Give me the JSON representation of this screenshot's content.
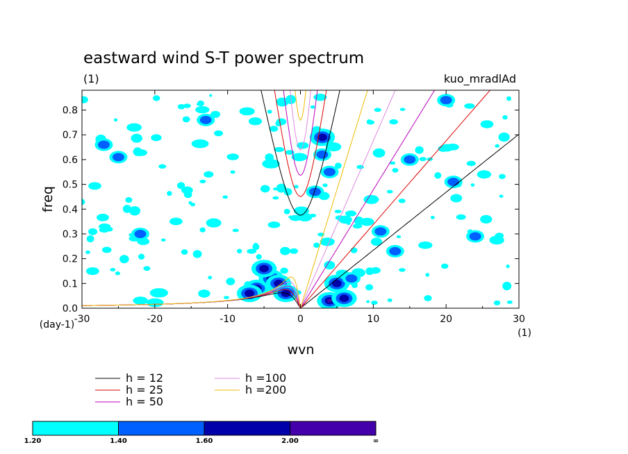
{
  "chart_data": {
    "type": "contour",
    "title": "eastward wind S-T power spectrum",
    "subtitle_left": "(1)",
    "subtitle_right": "kuo_mradlAd",
    "xlabel": "wvn",
    "ylabel": "freq",
    "x_unit_label": "(1)",
    "y_unit_label": "(day-1)",
    "xlim": [
      -30,
      30
    ],
    "ylim": [
      0,
      0.88
    ],
    "x_ticks": [
      -30,
      -20,
      -10,
      0,
      10,
      20,
      30
    ],
    "x_tick_labels": [
      "-30",
      "-20",
      "-10",
      "0",
      "10",
      "20",
      "30"
    ],
    "y_ticks": [
      0,
      0.1,
      0.2,
      0.3,
      0.4,
      0.5,
      0.6,
      0.7,
      0.8
    ],
    "y_tick_labels": [
      "0.0",
      "0.1",
      "0.2",
      "0.3",
      "0.4",
      "0.5",
      "0.6",
      "0.7",
      "0.8"
    ],
    "dispersion_curves": [
      {
        "label": "h = 12",
        "h": 12,
        "color": "#000000"
      },
      {
        "label": "h = 25",
        "h": 25,
        "color": "#dd0000"
      },
      {
        "label": "h = 50",
        "h": 50,
        "color": "#bb00bb"
      },
      {
        "label": "h =100",
        "h": 100,
        "color": "#dd88dd"
      },
      {
        "label": "h =200",
        "h": 200,
        "color": "#eebb00"
      }
    ],
    "shading": {
      "levels": [
        "1.20",
        "1.40",
        "1.60",
        "2.00",
        "∞"
      ],
      "colors": [
        "#00ffff",
        "#0060ff",
        "#0000aa",
        "#4400aa"
      ]
    },
    "spectral_features": [
      {
        "wvn": -6,
        "freq": 0.08,
        "level": 3
      },
      {
        "wvn": -4,
        "freq": 0.12,
        "level": 3
      },
      {
        "wvn": -3,
        "freq": 0.1,
        "level": 2
      },
      {
        "wvn": -7,
        "freq": 0.06,
        "level": 2
      },
      {
        "wvn": -2,
        "freq": 0.06,
        "level": 2
      },
      {
        "wvn": -5,
        "freq": 0.16,
        "level": 2
      },
      {
        "wvn": 4,
        "freq": 0.03,
        "level": 3
      },
      {
        "wvn": 6,
        "freq": 0.04,
        "level": 2
      },
      {
        "wvn": 5,
        "freq": 0.1,
        "level": 2
      },
      {
        "wvn": 7,
        "freq": 0.12,
        "level": 1
      },
      {
        "wvn": -27,
        "freq": 0.66,
        "level": 1
      },
      {
        "wvn": -25,
        "freq": 0.61,
        "level": 1
      },
      {
        "wvn": 3,
        "freq": 0.62,
        "level": 1
      },
      {
        "wvn": 3,
        "freq": 0.69,
        "level": 2
      },
      {
        "wvn": 4,
        "freq": 0.55,
        "level": 1
      },
      {
        "wvn": 20,
        "freq": 0.84,
        "level": 1
      },
      {
        "wvn": 21,
        "freq": 0.51,
        "level": 1
      },
      {
        "wvn": 11,
        "freq": 0.31,
        "level": 1
      },
      {
        "wvn": 13,
        "freq": 0.23,
        "level": 1
      },
      {
        "wvn": 24,
        "freq": 0.29,
        "level": 1
      },
      {
        "wvn": 15,
        "freq": 0.6,
        "level": 1
      },
      {
        "wvn": -13,
        "freq": 0.76,
        "level": 1
      },
      {
        "wvn": -22,
        "freq": 0.3,
        "level": 1
      },
      {
        "wvn": 2,
        "freq": 0.47,
        "level": 1
      }
    ]
  }
}
